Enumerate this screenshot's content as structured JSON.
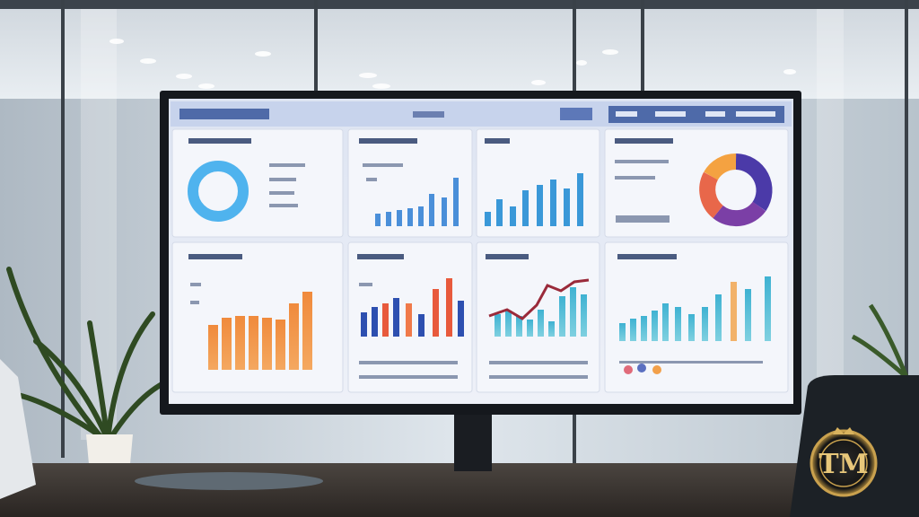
{
  "logo": {
    "text": "TM"
  }
}
